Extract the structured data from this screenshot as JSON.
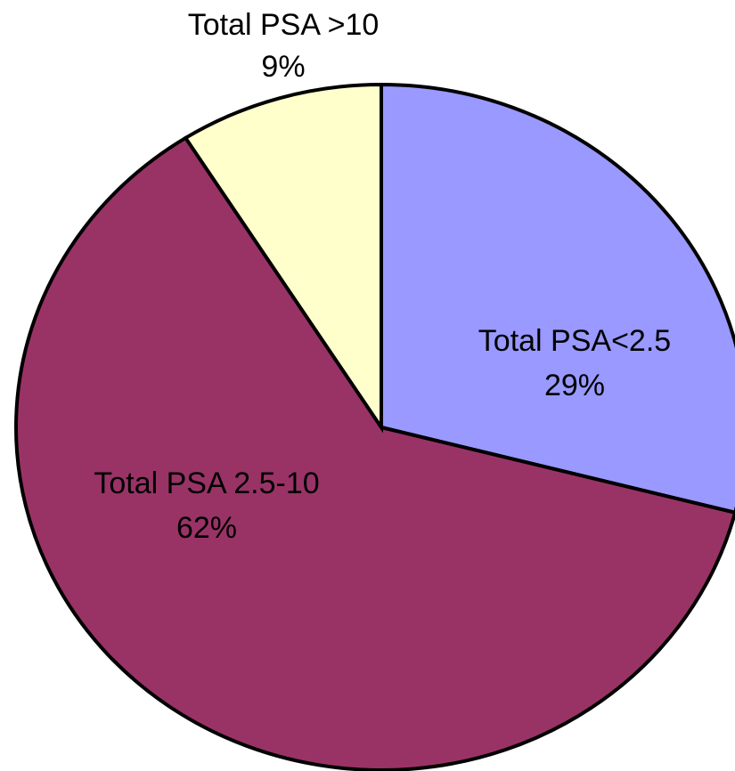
{
  "chart_data": {
    "type": "pie",
    "categories": [
      "Total PSA<2.5",
      "Total PSA 2.5-10",
      "Total PSA >10"
    ],
    "values": [
      29,
      62,
      9
    ],
    "value_labels": [
      "29%",
      "62%",
      "9%"
    ],
    "colors": [
      "#9999ff",
      "#993366",
      "#ffffcc"
    ]
  }
}
